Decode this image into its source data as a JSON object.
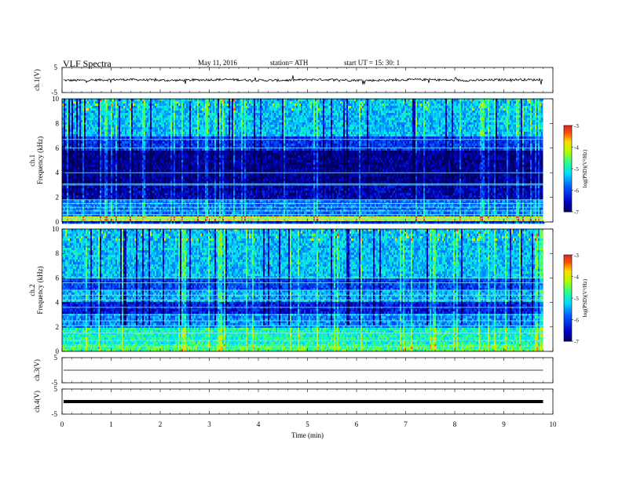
{
  "header": {
    "title": "VLF  Spectra",
    "date": "May 11, 2016",
    "station": "station= ATH",
    "start_ut": "start  UT  =    15: 30: 1"
  },
  "chart_data": [
    {
      "type": "line",
      "panel": "ch1-waveform",
      "ylabel": "ch.1(V)",
      "ylim": [
        -5,
        5
      ],
      "yticks": [
        "5",
        "-5"
      ],
      "x_unit": "min",
      "xlim": [
        0,
        10
      ],
      "x_end": 9.8,
      "baseline": 0,
      "amplitude_range": [
        -1.2,
        1.0
      ]
    },
    {
      "type": "heatmap",
      "panel": "ch1-spectrogram",
      "ylabel": "ch.1\nFrequency  (kHz)",
      "ylabel_line1": "ch.1",
      "ylabel_line2": "Frequency  (kHz)",
      "ylim": [
        0,
        10
      ],
      "yticks": [
        "0",
        "2",
        "4",
        "6",
        "8",
        "10"
      ],
      "xlim": [
        0,
        10
      ],
      "x_end": 9.8,
      "colorbar": {
        "label": "log(PSD)(V²/Hz)",
        "range": [
          -7,
          -3
        ],
        "ticks": [
          "-3",
          "-4",
          "-5",
          "-6",
          "-7"
        ]
      },
      "bands": [
        {
          "range_khz": [
            0,
            0.5
          ],
          "level": -4.0
        },
        {
          "range_khz": [
            0.5,
            1.8
          ],
          "level": -5.7
        },
        {
          "range_khz": [
            1.8,
            3.1
          ],
          "level": -6.6
        },
        {
          "range_khz": [
            3.1,
            5.8
          ],
          "level": -6.8
        },
        {
          "range_khz": [
            5.8,
            7.0
          ],
          "level": -6.1
        },
        {
          "range_khz": [
            7.0,
            10.0
          ],
          "level": -5.3
        }
      ],
      "lines_khz": [
        0.3,
        0.6,
        0.9,
        1.2,
        1.5,
        1.8,
        3.0,
        3.1,
        4.0,
        6.0,
        6.7
      ]
    },
    {
      "type": "heatmap",
      "panel": "ch2-spectrogram",
      "ylabel": "ch.2\nFrequency  (kHz)",
      "ylabel_line1": "ch.2",
      "ylabel_line2": "Frequency  (kHz)",
      "ylim": [
        0,
        10
      ],
      "yticks": [
        "0",
        "2",
        "4",
        "6",
        "8",
        "10"
      ],
      "xlim": [
        0,
        10
      ],
      "x_end": 9.8,
      "colorbar": {
        "label": "log(PSD)(V²/Hz)",
        "range": [
          -7,
          -3
        ],
        "ticks": [
          "-3",
          "-4",
          "-5",
          "-6",
          "-7"
        ]
      },
      "bands": [
        {
          "range_khz": [
            0,
            0.6
          ],
          "level": -4.6
        },
        {
          "range_khz": [
            0.6,
            2.0
          ],
          "level": -4.9
        },
        {
          "range_khz": [
            2.0,
            3.0
          ],
          "level": -5.6
        },
        {
          "range_khz": [
            3.0,
            4.0
          ],
          "level": -6.3
        },
        {
          "range_khz": [
            4.0,
            5.0
          ],
          "level": -5.4
        },
        {
          "range_khz": [
            5.0,
            6.0
          ],
          "level": -6.0
        },
        {
          "range_khz": [
            6.0,
            10.0
          ],
          "level": -5.3
        }
      ],
      "lines_khz": [
        0.4,
        0.9,
        1.5,
        2.1,
        2.5,
        3.0,
        3.6,
        4.2,
        4.6,
        5.0,
        5.6,
        6.0
      ]
    },
    {
      "type": "line",
      "panel": "ch3-waveform",
      "ylabel": "ch.3(V)",
      "ylim": [
        -5,
        5
      ],
      "yticks": [
        "5",
        "-5"
      ],
      "xlim": [
        0,
        10
      ],
      "x_end": 9.8,
      "baseline": 0,
      "amplitude_range": [
        0,
        0
      ]
    },
    {
      "type": "line",
      "panel": "ch4-waveform",
      "ylabel": "ch.4(V)",
      "ylim": [
        -5,
        5
      ],
      "yticks": [
        "5",
        "-5"
      ],
      "xlim": [
        0,
        10
      ],
      "x_end": 9.8,
      "baseline": 0,
      "amplitude_range": [
        -0.2,
        0.2
      ],
      "xlabel": "Time  (min)",
      "xticks": [
        "0",
        "1",
        "2",
        "3",
        "4",
        "5",
        "6",
        "7",
        "8",
        "9",
        "10"
      ]
    }
  ]
}
